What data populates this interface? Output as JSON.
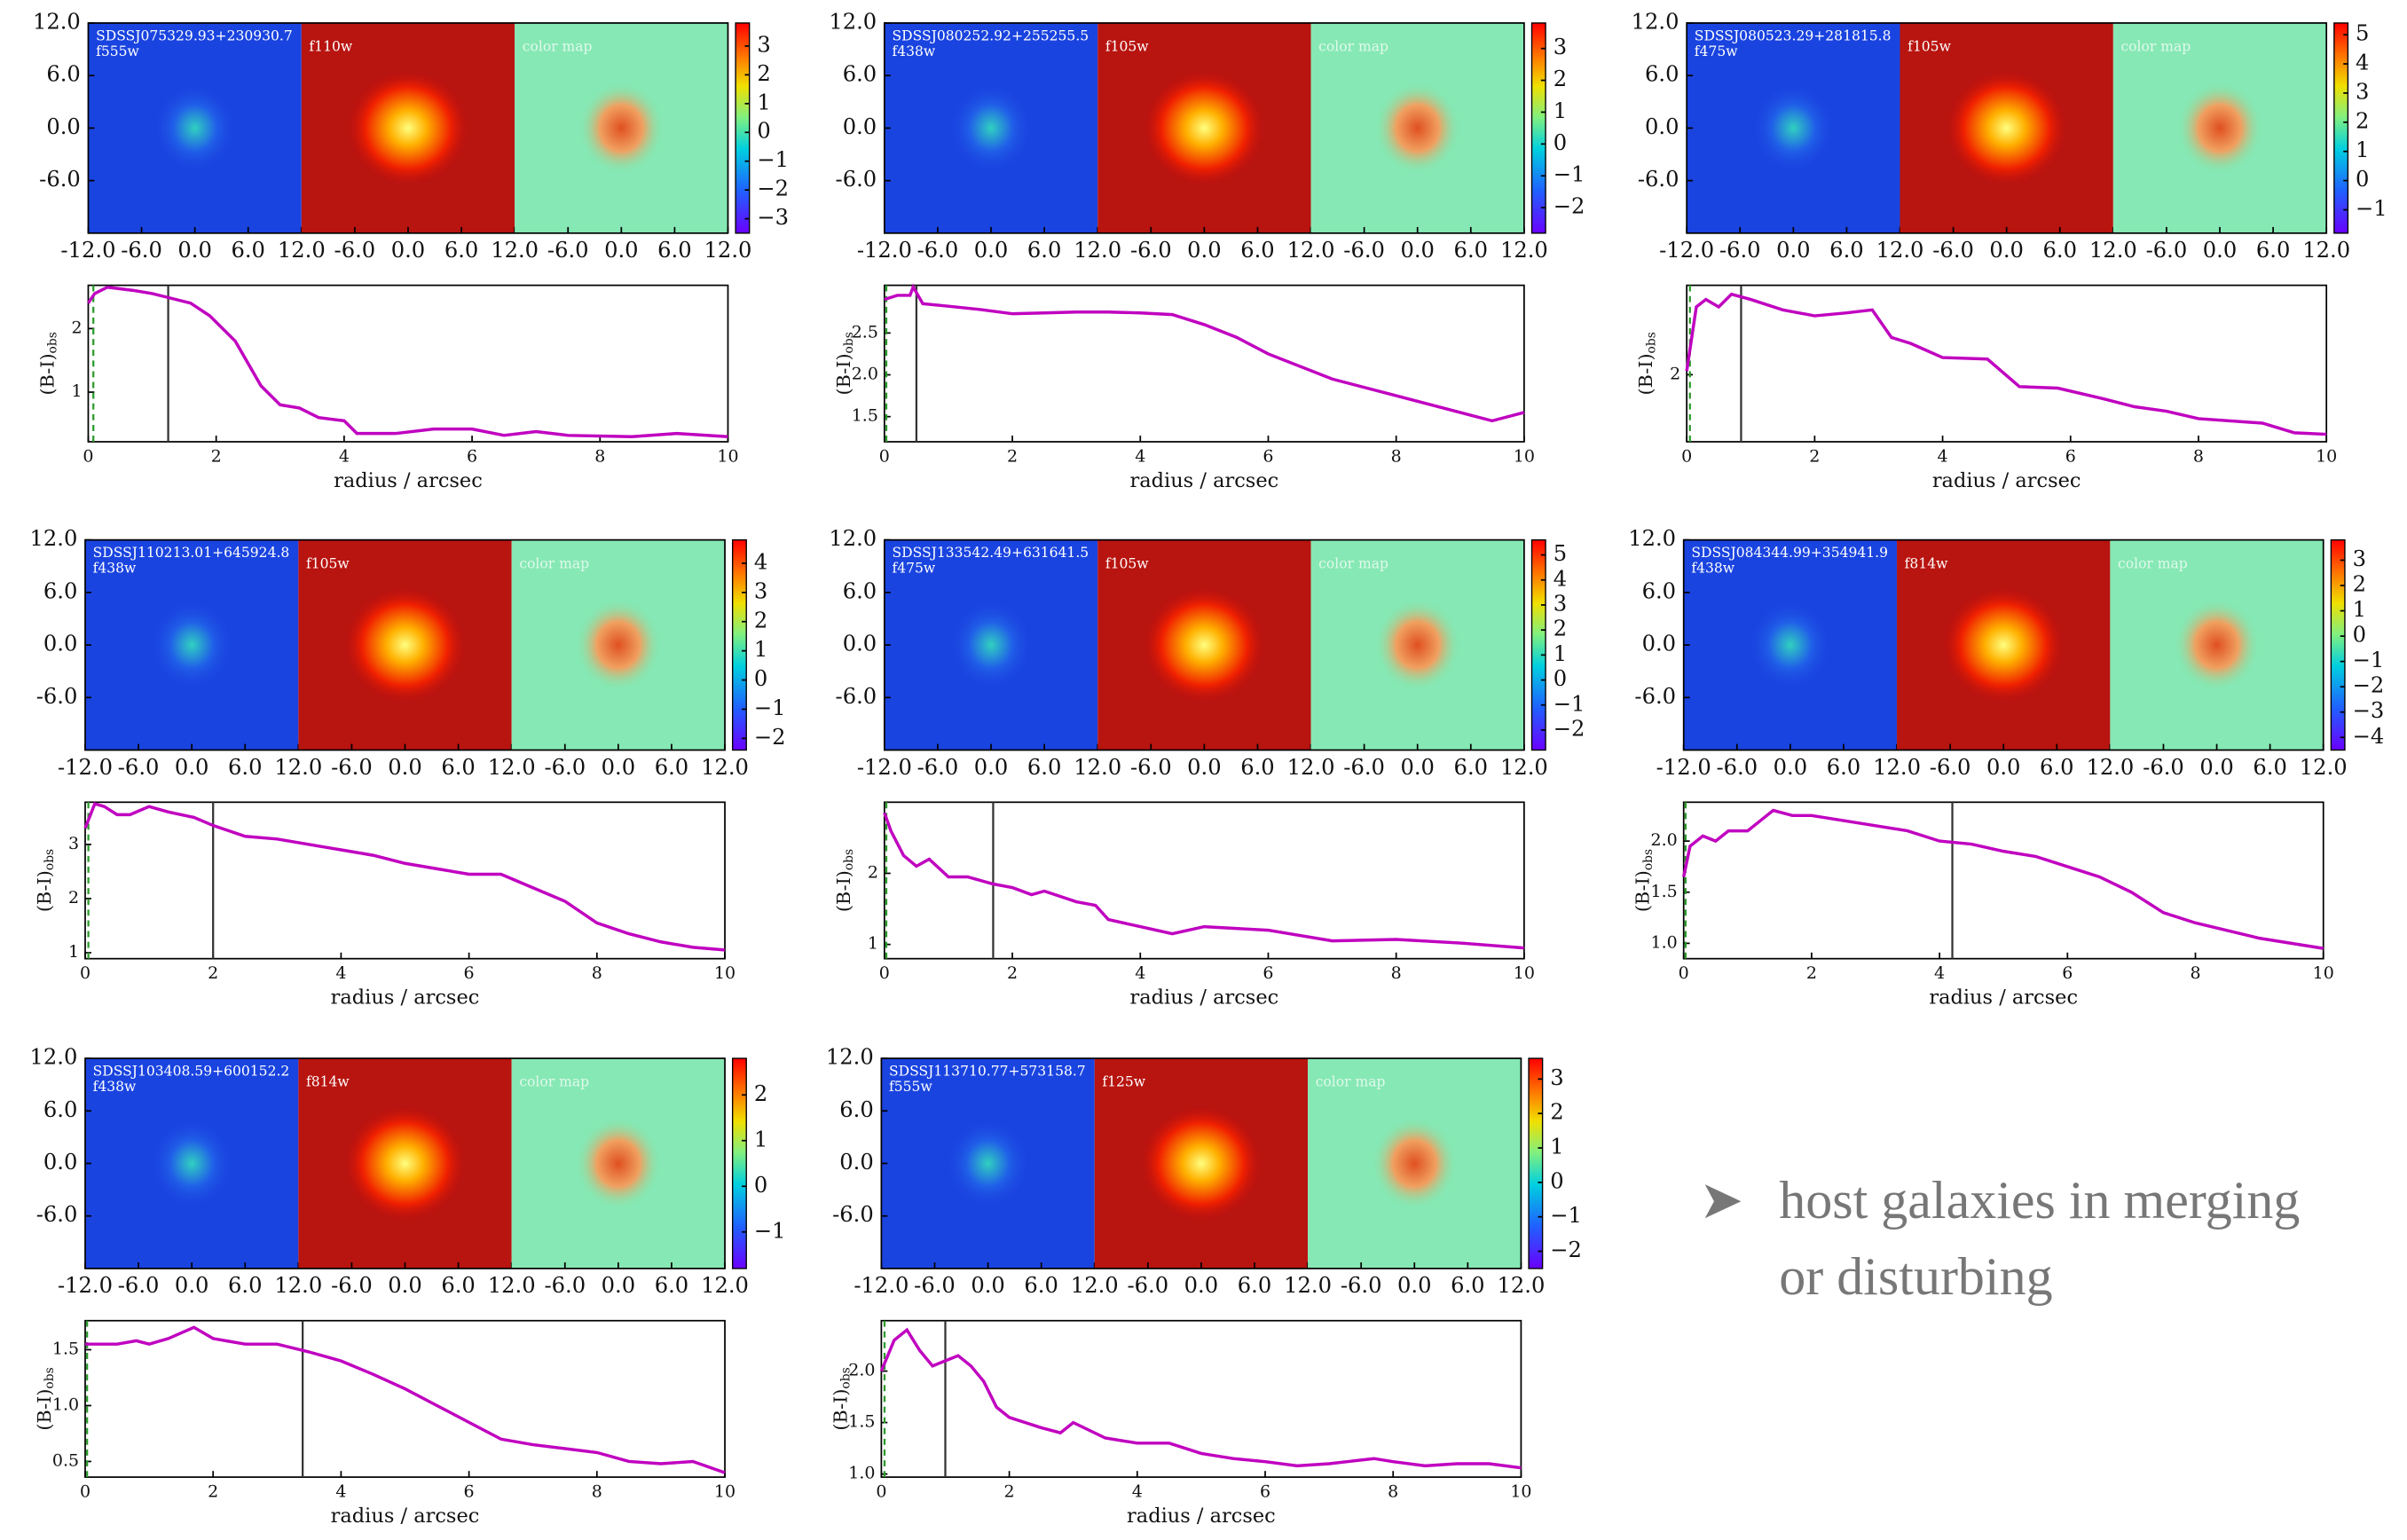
{
  "image_axis": {
    "xlim": [
      -12,
      12
    ],
    "ylim": [
      -12,
      12
    ],
    "xticks": [
      {
        "value": -12,
        "label": "-12.0"
      },
      {
        "value": -6,
        "label": "-6.0"
      },
      {
        "value": 0,
        "label": "0.0"
      },
      {
        "value": 6,
        "label": "6.0"
      },
      {
        "value": 12,
        "label": "12.0"
      }
    ],
    "yticks": [
      {
        "value": 12,
        "label": "12.0"
      },
      {
        "value": 6,
        "label": "6.0"
      },
      {
        "value": 0,
        "label": "0.0"
      },
      {
        "value": -6,
        "label": "-6.0"
      }
    ]
  },
  "bullet": "host galaxies in merging or disturbing",
  "chart_data": [
    {
      "type": "line",
      "object": "SDSSJ075329.93+230930.7",
      "filters": [
        "f555w",
        "f110w",
        "color map"
      ],
      "colorbar_lim": [
        -3.5,
        3.8
      ],
      "colorbar_ticks": [
        3,
        2,
        1,
        0,
        {
          "value": -1,
          "label": "−1"
        },
        {
          "value": -2,
          "label": "−2"
        },
        {
          "value": -3,
          "label": "−3"
        }
      ],
      "x": [
        0,
        0.1,
        0.3,
        0.7,
        1,
        1.2,
        1.6,
        1.9,
        2.3,
        2.7,
        3,
        3.3,
        3.6,
        4,
        4.2,
        4.8,
        5.4,
        6,
        6.5,
        7,
        7.5,
        8.5,
        9.2,
        10
      ],
      "values": [
        2.4,
        2.55,
        2.65,
        2.6,
        2.55,
        2.5,
        2.4,
        2.2,
        1.8,
        1.1,
        0.8,
        0.75,
        0.6,
        0.55,
        0.35,
        0.35,
        0.42,
        0.42,
        0.32,
        0.38,
        0.32,
        0.3,
        0.35,
        0.3
      ],
      "color": "#c000c0",
      "xlim": [
        0,
        10
      ],
      "xticks": [
        0,
        2,
        4,
        6,
        8,
        10
      ],
      "ylim": [
        0.22,
        2.68
      ],
      "yticks": [
        1,
        2
      ],
      "x_label": "radius / arcsec",
      "y_label": "(B-I)",
      "y_label_sub": "obs",
      "vlines": [
        {
          "value": 1.25,
          "color": "#333333",
          "dashed": false
        },
        {
          "value": 0.08,
          "color": "#2a9a2a",
          "dashed": true
        }
      ]
    },
    {
      "type": "line",
      "object": "SDSSJ080252.92+255255.5",
      "filters": [
        "f438w",
        "f105w",
        "color map"
      ],
      "colorbar_lim": [
        -2.8,
        3.8
      ],
      "colorbar_ticks": [
        3,
        2,
        1,
        0,
        {
          "value": -1,
          "label": "−1"
        },
        {
          "value": -2,
          "label": "−2"
        }
      ],
      "x": [
        0,
        0.2,
        0.4,
        0.45,
        0.6,
        1,
        1.5,
        2,
        2.5,
        3,
        3.5,
        4,
        4.5,
        5,
        5.5,
        6,
        7,
        8,
        9,
        9.5,
        10
      ],
      "values": [
        2.9,
        2.95,
        2.95,
        3.05,
        2.85,
        2.82,
        2.78,
        2.73,
        2.74,
        2.75,
        2.75,
        2.74,
        2.72,
        2.6,
        2.45,
        2.25,
        1.95,
        1.75,
        1.55,
        1.45,
        1.55
      ],
      "color": "#c000c0",
      "xlim": [
        0,
        10
      ],
      "xticks": [
        0,
        2,
        4,
        6,
        8,
        10
      ],
      "ylim": [
        1.2,
        3.07
      ],
      "yticks": [
        1.5,
        {
          "value": 2,
          "label": "2.0"
        },
        2.5
      ],
      "x_label": "radius / arcsec",
      "y_label": "(B-I)",
      "y_label_sub": "obs",
      "vlines": [
        {
          "value": 0.5,
          "color": "#333333",
          "dashed": false
        },
        {
          "value": 0.03,
          "color": "#2a9a2a",
          "dashed": true
        }
      ]
    },
    {
      "type": "line",
      "object": "SDSSJ080523.29+281815.8",
      "filters": [
        "f475w",
        "f105w",
        "color map"
      ],
      "colorbar_lim": [
        -1.8,
        5.4
      ],
      "colorbar_ticks": [
        5,
        4,
        3,
        2,
        1,
        0,
        {
          "value": -1,
          "label": "−1"
        }
      ],
      "x": [
        0,
        0.15,
        0.3,
        0.5,
        0.7,
        1,
        1.5,
        2,
        2.5,
        2.9,
        3.2,
        3.5,
        4,
        4.7,
        5.2,
        5.8,
        6.5,
        7,
        7.5,
        8,
        9,
        9.5,
        10
      ],
      "values": [
        2.05,
        2.91,
        3.01,
        2.91,
        3.08,
        3.01,
        2.87,
        2.79,
        2.83,
        2.87,
        2.5,
        2.42,
        2.23,
        2.21,
        1.84,
        1.82,
        1.68,
        1.57,
        1.51,
        1.41,
        1.35,
        1.22,
        1.2
      ],
      "color": "#c000c0",
      "xlim": [
        0,
        10
      ],
      "xticks": [
        0,
        2,
        4,
        6,
        8,
        10
      ],
      "ylim": [
        1.1,
        3.2
      ],
      "yticks": [
        2
      ],
      "x_label": "radius / arcsec",
      "y_label": "(B-I)",
      "y_label_sub": "obs",
      "vlines": [
        {
          "value": 0.85,
          "color": "#333333",
          "dashed": false
        },
        {
          "value": 0.05,
          "color": "#2a9a2a",
          "dashed": true
        }
      ]
    },
    {
      "type": "line",
      "object": "SDSSJ110213.01+645924.8",
      "filters": [
        "f438w",
        "f105w",
        "color map"
      ],
      "colorbar_lim": [
        -2.4,
        4.8
      ],
      "colorbar_ticks": [
        4,
        3,
        2,
        1,
        0,
        {
          "value": -1,
          "label": "−1"
        },
        {
          "value": -2,
          "label": "−2"
        }
      ],
      "x": [
        0,
        0.15,
        0.3,
        0.5,
        0.7,
        1,
        1.3,
        1.7,
        2,
        2.5,
        3,
        3.5,
        4,
        4.5,
        5,
        5.5,
        6,
        6.5,
        7,
        7.5,
        8,
        8.5,
        9,
        9.5,
        10
      ],
      "values": [
        3.3,
        3.75,
        3.7,
        3.55,
        3.55,
        3.7,
        3.6,
        3.5,
        3.35,
        3.15,
        3.1,
        3.0,
        2.9,
        2.8,
        2.65,
        2.55,
        2.45,
        2.45,
        2.2,
        1.95,
        1.55,
        1.35,
        1.2,
        1.1,
        1.05
      ],
      "color": "#c000c0",
      "xlim": [
        0,
        10
      ],
      "xticks": [
        0,
        2,
        4,
        6,
        8,
        10
      ],
      "ylim": [
        0.89,
        3.78
      ],
      "yticks": [
        1,
        2,
        3
      ],
      "x_label": "radius / arcsec",
      "y_label": "(B-I)",
      "y_label_sub": "obs",
      "vlines": [
        {
          "value": 2.0,
          "color": "#333333",
          "dashed": false
        },
        {
          "value": 0.05,
          "color": "#2a9a2a",
          "dashed": true
        }
      ]
    },
    {
      "type": "line",
      "object": "SDSSJ133542.49+631641.5",
      "filters": [
        "f475w",
        "f105w",
        "color map"
      ],
      "colorbar_lim": [
        -2.8,
        5.6
      ],
      "colorbar_ticks": [
        5,
        4,
        3,
        2,
        1,
        0,
        {
          "value": -1,
          "label": "−1"
        },
        {
          "value": -2,
          "label": "−2"
        }
      ],
      "x": [
        0,
        0.1,
        0.3,
        0.5,
        0.7,
        1,
        1.3,
        1.7,
        2,
        2.3,
        2.5,
        3,
        3.3,
        3.5,
        4,
        4.5,
        5,
        6,
        7,
        8,
        9,
        10
      ],
      "values": [
        2.85,
        2.6,
        2.25,
        2.1,
        2.2,
        1.95,
        1.95,
        1.85,
        1.8,
        1.7,
        1.75,
        1.6,
        1.55,
        1.35,
        1.25,
        1.15,
        1.25,
        1.2,
        1.05,
        1.07,
        1.02,
        0.95
      ],
      "color": "#c000c0",
      "xlim": [
        0,
        10
      ],
      "xticks": [
        0,
        2,
        4,
        6,
        8,
        10
      ],
      "ylim": [
        0.8,
        3.0
      ],
      "yticks": [
        1,
        2
      ],
      "x_label": "radius / arcsec",
      "y_label": "(B-I)",
      "y_label_sub": "obs",
      "vlines": [
        {
          "value": 1.7,
          "color": "#333333",
          "dashed": false
        },
        {
          "value": 0.03,
          "color": "#2a9a2a",
          "dashed": true
        }
      ]
    },
    {
      "type": "line",
      "object": "SDSSJ084344.99+354941.9",
      "filters": [
        "f438w",
        "f814w",
        "color map"
      ],
      "colorbar_lim": [
        -4.5,
        3.8
      ],
      "colorbar_ticks": [
        3,
        2,
        1,
        0,
        {
          "value": -1,
          "label": "−1"
        },
        {
          "value": -2,
          "label": "−2"
        },
        {
          "value": -3,
          "label": "−3"
        },
        {
          "value": -4,
          "label": "−4"
        }
      ],
      "x": [
        0,
        0.1,
        0.3,
        0.5,
        0.7,
        1,
        1.2,
        1.4,
        1.7,
        2,
        2.5,
        3,
        3.5,
        4,
        4.5,
        5,
        5.5,
        6,
        6.5,
        7,
        7.5,
        8,
        9,
        10
      ],
      "values": [
        1.65,
        1.95,
        2.05,
        2.0,
        2.1,
        2.1,
        2.2,
        2.3,
        2.25,
        2.25,
        2.2,
        2.15,
        2.1,
        2.0,
        1.97,
        1.9,
        1.85,
        1.75,
        1.65,
        1.5,
        1.3,
        1.2,
        1.05,
        0.95
      ],
      "color": "#c000c0",
      "xlim": [
        0,
        10
      ],
      "xticks": [
        0,
        2,
        4,
        6,
        8,
        10
      ],
      "ylim": [
        0.85,
        2.38
      ],
      "yticks": [
        {
          "value": 1,
          "label": "1.0"
        },
        1.5,
        {
          "value": 2,
          "label": "2.0"
        }
      ],
      "x_label": "radius / arcsec",
      "y_label": "(B-I)",
      "y_label_sub": "obs",
      "vlines": [
        {
          "value": 4.2,
          "color": "#333333",
          "dashed": false
        },
        {
          "value": 0.03,
          "color": "#2a9a2a",
          "dashed": true
        }
      ]
    },
    {
      "type": "line",
      "object": "SDSSJ103408.59+600152.2",
      "filters": [
        "f438w",
        "f814w",
        "color map"
      ],
      "colorbar_lim": [
        -1.8,
        2.8
      ],
      "colorbar_ticks": [
        2,
        1,
        0,
        {
          "value": -1,
          "label": "−1"
        }
      ],
      "x": [
        0,
        0.2,
        0.5,
        0.8,
        1,
        1.3,
        1.7,
        2,
        2.5,
        3,
        3.5,
        4,
        4.5,
        5,
        5.5,
        6,
        6.5,
        7,
        8,
        8.5,
        9,
        9.5,
        10
      ],
      "values": [
        1.55,
        1.55,
        1.55,
        1.58,
        1.55,
        1.6,
        1.7,
        1.6,
        1.55,
        1.55,
        1.48,
        1.4,
        1.28,
        1.15,
        1.0,
        0.85,
        0.7,
        0.65,
        0.58,
        0.5,
        0.48,
        0.5,
        0.4
      ],
      "color": "#c000c0",
      "xlim": [
        0,
        10
      ],
      "xticks": [
        0,
        2,
        4,
        6,
        8,
        10
      ],
      "ylim": [
        0.36,
        1.76
      ],
      "yticks": [
        0.5,
        {
          "value": 1,
          "label": "1.0"
        },
        1.5
      ],
      "x_label": "radius / arcsec",
      "y_label": "(B-I)",
      "y_label_sub": "obs",
      "vlines": [
        {
          "value": 3.4,
          "color": "#333333",
          "dashed": false
        },
        {
          "value": 0.03,
          "color": "#2a9a2a",
          "dashed": true
        }
      ]
    },
    {
      "type": "line",
      "object": "SDSSJ113710.77+573158.7",
      "filters": [
        "f555w",
        "f125w",
        "color map"
      ],
      "colorbar_lim": [
        -2.5,
        3.6
      ],
      "colorbar_ticks": [
        3,
        2,
        1,
        0,
        {
          "value": -1,
          "label": "−1"
        },
        {
          "value": -2,
          "label": "−2"
        }
      ],
      "x": [
        0,
        0.2,
        0.4,
        0.6,
        0.8,
        1,
        1.2,
        1.4,
        1.6,
        1.8,
        2,
        2.5,
        2.8,
        3,
        3.5,
        4,
        4.5,
        5,
        5.5,
        6,
        6.5,
        7,
        7.7,
        8,
        8.5,
        9,
        9.5,
        10
      ],
      "values": [
        2.0,
        2.3,
        2.4,
        2.2,
        2.05,
        2.1,
        2.15,
        2.05,
        1.9,
        1.65,
        1.55,
        1.45,
        1.4,
        1.5,
        1.35,
        1.3,
        1.3,
        1.2,
        1.15,
        1.12,
        1.08,
        1.1,
        1.15,
        1.12,
        1.08,
        1.1,
        1.1,
        1.06
      ],
      "color": "#c000c0",
      "xlim": [
        0,
        10
      ],
      "xticks": [
        0,
        2,
        4,
        6,
        8,
        10
      ],
      "ylim": [
        0.97,
        2.49
      ],
      "yticks": [
        {
          "value": 1,
          "label": "1.0"
        },
        1.5,
        {
          "value": 2,
          "label": "2.0"
        }
      ],
      "x_label": "radius / arcsec",
      "y_label": "(B-I)",
      "y_label_sub": "obs",
      "vlines": [
        {
          "value": 1.0,
          "color": "#333333",
          "dashed": false
        },
        {
          "value": 0.05,
          "color": "#2a9a2a",
          "dashed": true
        }
      ]
    }
  ]
}
